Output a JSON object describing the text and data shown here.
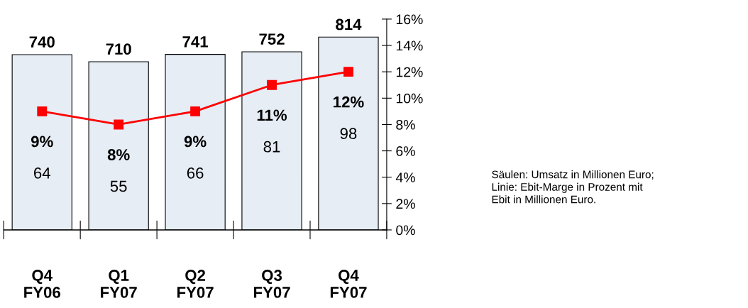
{
  "chart_data": {
    "type": "bar",
    "categories": [
      "Q4\nFY06",
      "Q1\nFY07",
      "Q2\nFY07",
      "Q3\nFY07",
      "Q4\nFY07"
    ],
    "series": [
      {
        "color": "#e6edf5",
        "values": [
          740,
          710,
          741,
          752,
          814
        ],
        "data_labels": true
      },
      {
        "type": "line",
        "axis": "y2",
        "color": "#ff0000",
        "values": [
          9,
          8,
          9,
          11,
          12
        ],
        "value_labels": [
          "9%",
          "8%",
          "9%",
          "11%",
          "12%"
        ],
        "marker": "square",
        "line_style": "solid"
      }
    ],
    "ylim": [
      0,
      890
    ],
    "y2lim": [
      0,
      16
    ],
    "y2ticks": [
      {
        "value": 0,
        "label": "0%"
      },
      {
        "value": 2,
        "label": "2%"
      },
      {
        "value": 4,
        "label": "4%"
      },
      {
        "value": 6,
        "label": "6%"
      },
      {
        "value": 8,
        "label": "8%"
      },
      {
        "value": 10,
        "label": "10%"
      },
      {
        "value": 12,
        "label": "12%"
      },
      {
        "value": 14,
        "label": "14%"
      },
      {
        "value": 16,
        "label": "16%"
      }
    ],
    "grid": false,
    "legend": false,
    "annotations": [
      "64",
      "55",
      "66",
      "81",
      "98",
      "Säulen: Umsatz in Millionen Euro;\nLinie: Ebit-Marge in Prozent mit\nEbit in Millionen Euro."
    ]
  }
}
